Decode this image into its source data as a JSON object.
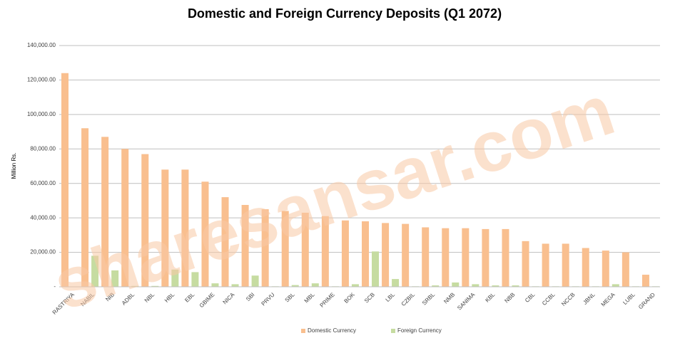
{
  "chart_data": {
    "type": "bar",
    "title": "Domestic and Foreign Currency Deposits (Q1 2072)",
    "y_label": "Million Rs.",
    "watermark": "sharesansar.com",
    "categories": [
      "RASTRIYA",
      "NABIL",
      "NIB",
      "ADBL",
      "NBL",
      "HBL",
      "EBL",
      "GBIME",
      "NICA",
      "SBI",
      "PRVU",
      "SBL",
      "MBL",
      "PRIME",
      "BOK",
      "SCB",
      "LBL",
      "CZBIL",
      "SRBL",
      "NMB",
      "SANIMA",
      "KBL",
      "NBB",
      "CBL",
      "CCBL",
      "NCCB",
      "JBNL",
      "MEGA",
      "LUBL",
      "GRAND"
    ],
    "series": [
      {
        "name": "Domestic Currency",
        "color": "#f9bf8f",
        "values": [
          124000,
          92000,
          87000,
          80000,
          77000,
          68000,
          68000,
          61000,
          52000,
          47500,
          45000,
          44000,
          43000,
          41000,
          38500,
          38000,
          37000,
          36500,
          34500,
          34000,
          34000,
          33500,
          33500,
          26500,
          25000,
          25000,
          22500,
          21000,
          20000,
          7000
        ]
      },
      {
        "name": "Foreign Currency",
        "color": "#c6dca1",
        "values": [
          200,
          18000,
          9500,
          500,
          500,
          10000,
          8500,
          2000,
          1500,
          6500,
          300,
          1000,
          2000,
          300,
          1500,
          20500,
          4500,
          300,
          800,
          2500,
          1500,
          800,
          800,
          300,
          300,
          300,
          300,
          1500,
          300,
          300
        ]
      }
    ],
    "ylim": [
      0,
      140000
    ],
    "yticks": [
      {
        "value": 0,
        "label": "-"
      },
      {
        "value": 20000,
        "label": "20,000.00"
      },
      {
        "value": 40000,
        "label": "40,000.00"
      },
      {
        "value": 60000,
        "label": "60,000.00"
      },
      {
        "value": 80000,
        "label": "80,000.00"
      },
      {
        "value": 100000,
        "label": "100,000.00"
      },
      {
        "value": 120000,
        "label": "120,000.00"
      },
      {
        "value": 140000,
        "label": "140,000.00"
      }
    ],
    "grid": true,
    "legend": "bottom"
  }
}
